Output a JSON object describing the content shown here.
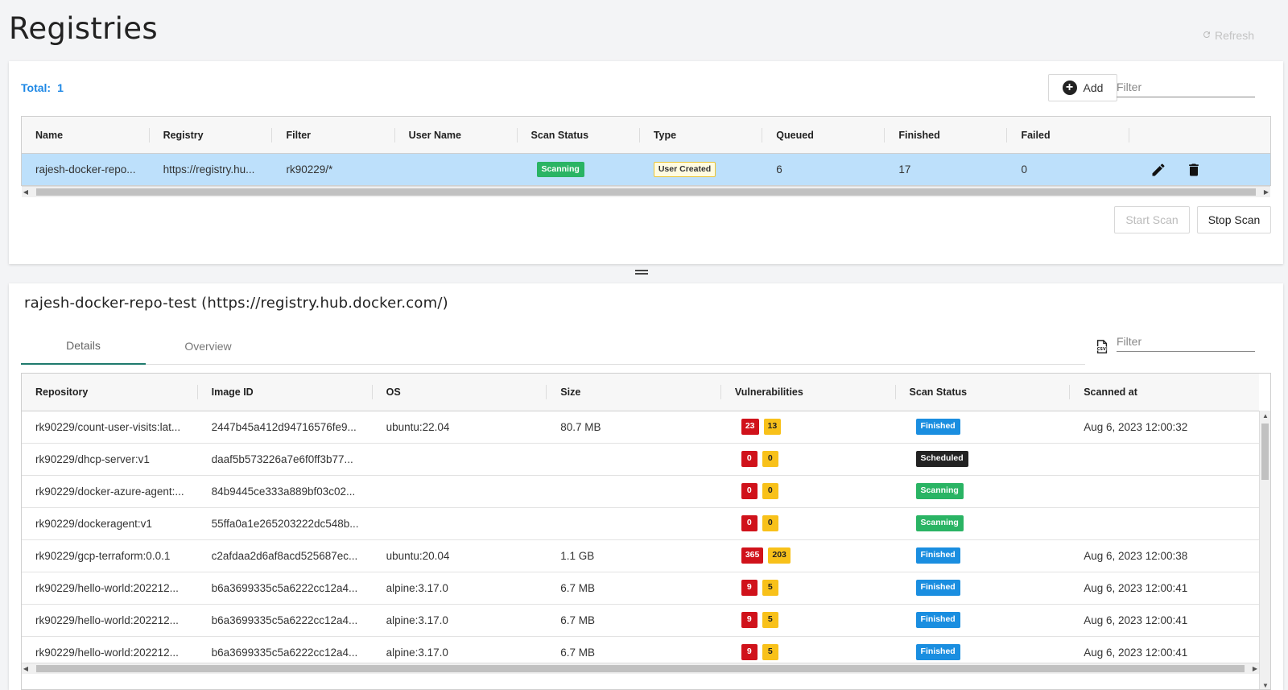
{
  "header": {
    "title": "Registries",
    "refresh_label": "Refresh"
  },
  "registries": {
    "total_label": "Total:",
    "total_value": "1",
    "add_label": "Add",
    "filter_placeholder": "Filter",
    "columns": [
      "Name",
      "Registry",
      "Filter",
      "User Name",
      "Scan Status",
      "Type",
      "Queued",
      "Finished",
      "Failed"
    ],
    "rows": [
      {
        "name": "rajesh-docker-repo...",
        "registry": "https://registry.hu...",
        "filter": "rk90229/*",
        "user_name": "",
        "scan_status": "Scanning",
        "type": "User Created",
        "queued": "6",
        "finished": "17",
        "failed": "0"
      }
    ],
    "start_scan_label": "Start Scan",
    "stop_scan_label": "Stop Scan"
  },
  "details": {
    "title": "rajesh-docker-repo-test (https://registry.hub.docker.com/)",
    "tabs": [
      "Details",
      "Overview"
    ],
    "active_tab": "Details",
    "csv_icon": "csv-export-icon",
    "filter_placeholder": "Filter",
    "columns": [
      "Repository",
      "Image ID",
      "OS",
      "Size",
      "Vulnerabilities",
      "Scan Status",
      "Scanned at"
    ],
    "rows": [
      {
        "repository": "rk90229/count-user-visits:lat...",
        "image_id": "2447b45a412d94716576fe9...",
        "os": "ubuntu:22.04",
        "size": "80.7 MB",
        "vuln_high": "23",
        "vuln_med": "13",
        "scan_status": "Finished",
        "scanned_at": "Aug 6, 2023 12:00:32"
      },
      {
        "repository": "rk90229/dhcp-server:v1",
        "image_id": "daaf5b573226a7e6f0ff3b77...",
        "os": "",
        "size": "",
        "vuln_high": "0",
        "vuln_med": "0",
        "scan_status": "Scheduled",
        "scanned_at": ""
      },
      {
        "repository": "rk90229/docker-azure-agent:...",
        "image_id": "84b9445ce333a889bf03c02...",
        "os": "",
        "size": "",
        "vuln_high": "0",
        "vuln_med": "0",
        "scan_status": "Scanning",
        "scanned_at": ""
      },
      {
        "repository": "rk90229/dockeragent:v1",
        "image_id": "55ffa0a1e265203222dc548b...",
        "os": "",
        "size": "",
        "vuln_high": "0",
        "vuln_med": "0",
        "scan_status": "Scanning",
        "scanned_at": ""
      },
      {
        "repository": "rk90229/gcp-terraform:0.0.1",
        "image_id": "c2afdaa2d6af8acd525687ec...",
        "os": "ubuntu:20.04",
        "size": "1.1 GB",
        "vuln_high": "365",
        "vuln_med": "203",
        "scan_status": "Finished",
        "scanned_at": "Aug 6, 2023 12:00:38"
      },
      {
        "repository": "rk90229/hello-world:202212...",
        "image_id": "b6a3699335c5a6222cc12a4...",
        "os": "alpine:3.17.0",
        "size": "6.7 MB",
        "vuln_high": "9",
        "vuln_med": "5",
        "scan_status": "Finished",
        "scanned_at": "Aug 6, 2023 12:00:41"
      },
      {
        "repository": "rk90229/hello-world:202212...",
        "image_id": "b6a3699335c5a6222cc12a4...",
        "os": "alpine:3.17.0",
        "size": "6.7 MB",
        "vuln_high": "9",
        "vuln_med": "5",
        "scan_status": "Finished",
        "scanned_at": "Aug 6, 2023 12:00:41"
      },
      {
        "repository": "rk90229/hello-world:202212...",
        "image_id": "b6a3699335c5a6222cc12a4...",
        "os": "alpine:3.17.0",
        "size": "6.7 MB",
        "vuln_high": "9",
        "vuln_med": "5",
        "scan_status": "Finished",
        "scanned_at": "Aug 6, 2023 12:00:41"
      }
    ]
  },
  "colors": {
    "accent": "#1e88e5",
    "selected_row": "#bde0fb",
    "scanning": "#2ab464",
    "finished": "#1a8ee0",
    "scheduled": "#222222",
    "vuln_high": "#d0121b",
    "vuln_medium": "#f8c11a",
    "tab_active": "#1f7a6d"
  }
}
